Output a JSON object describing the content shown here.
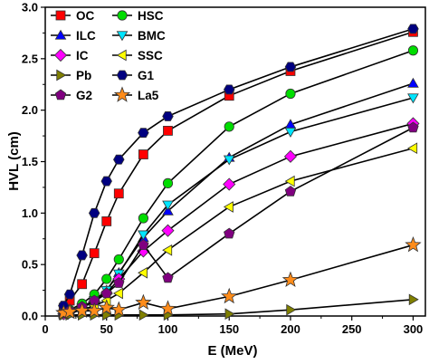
{
  "chart_data": {
    "type": "line",
    "xlabel": "E (MeV)",
    "ylabel": "HVL (cm)",
    "xlim": [
      0,
      310
    ],
    "ylim": [
      0,
      3.0
    ],
    "xticks": [
      0,
      50,
      100,
      150,
      200,
      250,
      300
    ],
    "yticks": [
      0.0,
      0.5,
      1.0,
      1.5,
      2.0,
      2.5,
      3.0
    ],
    "xtick_labels": [
      "0",
      "50",
      "100",
      "150",
      "200",
      "250",
      "300"
    ],
    "ytick_labels": [
      "0.0",
      "0.5",
      "1.0",
      "1.5",
      "2.0",
      "2.5",
      "3.0"
    ],
    "legend_position": "top-left",
    "grid": false,
    "x": [
      15,
      20,
      30,
      40,
      50,
      60,
      80,
      100,
      150,
      200,
      300
    ],
    "series": [
      {
        "name": "OC",
        "color": "#ff0000",
        "marker": "square",
        "values": [
          0.08,
          0.15,
          0.31,
          0.61,
          0.92,
          1.19,
          1.57,
          1.8,
          2.14,
          2.38,
          2.76
        ]
      },
      {
        "name": "HSC",
        "color": "#00dd00",
        "marker": "circle",
        "values": [
          0.03,
          0.06,
          0.12,
          0.21,
          0.36,
          0.55,
          0.95,
          1.29,
          1.84,
          2.16,
          2.58
        ]
      },
      {
        "name": "ILC",
        "color": "#0000ff",
        "marker": "triangle-up",
        "values": [
          0.02,
          0.04,
          0.09,
          0.15,
          0.25,
          0.42,
          0.76,
          1.02,
          1.54,
          1.86,
          2.26
        ]
      },
      {
        "name": "BMC",
        "color": "#00e5ff",
        "marker": "triangle-down",
        "values": [
          0.02,
          0.04,
          0.08,
          0.15,
          0.25,
          0.41,
          0.79,
          1.08,
          1.52,
          1.79,
          2.12
        ]
      },
      {
        "name": "IC",
        "color": "#ff00ff",
        "marker": "diamond",
        "values": [
          0.02,
          0.04,
          0.08,
          0.14,
          0.22,
          0.36,
          0.63,
          0.83,
          1.28,
          1.55,
          1.87
        ]
      },
      {
        "name": "SSC",
        "color": "#ffff00",
        "marker": "triangle-left",
        "values": [
          0.02,
          0.03,
          0.06,
          0.1,
          0.15,
          0.22,
          0.42,
          0.64,
          1.06,
          1.31,
          1.63
        ]
      },
      {
        "name": "Pb",
        "color": "#808000",
        "marker": "triangle-right",
        "values": [
          0.01,
          0.01,
          0.01,
          0.01,
          0.01,
          0.01,
          0.01,
          0.01,
          0.02,
          0.06,
          0.16
        ]
      },
      {
        "name": "G1",
        "color": "#000080",
        "marker": "hexagon",
        "values": [
          0.1,
          0.21,
          0.59,
          1.0,
          1.31,
          1.52,
          1.78,
          1.94,
          2.2,
          2.42,
          2.79
        ]
      },
      {
        "name": "G2",
        "color": "#800080",
        "marker": "pentagon",
        "values": [
          0.03,
          0.05,
          0.09,
          0.15,
          0.22,
          0.32,
          0.69,
          0.37,
          0.8,
          1.21,
          1.83
        ]
      },
      {
        "name": "La5",
        "color": "#ff8c1a",
        "marker": "star",
        "values": [
          0.03,
          0.04,
          0.05,
          0.05,
          0.08,
          0.06,
          0.13,
          0.07,
          0.19,
          0.35,
          0.69
        ]
      }
    ]
  }
}
